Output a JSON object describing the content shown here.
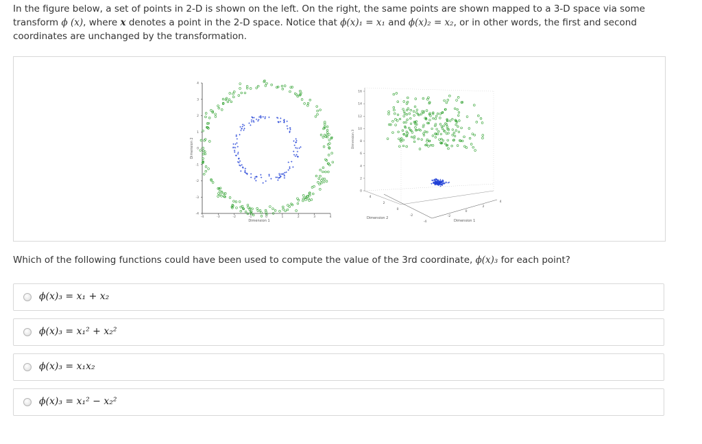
{
  "intro": {
    "line1": "In the figure below, a set of points in 2-D is shown on the left. On the right, the same points are shown mapped to a 3-D space via some",
    "line2_pre": "transform ",
    "phi_x": "ϕ (x)",
    "line2_mid": ", where ",
    "x_bold": "x",
    "line2_mid2": " denotes a point in the 2-D space. Notice that ",
    "eq1": "ϕ(x)₁ = x₁",
    "and": " and ",
    "eq2": "ϕ(x)₂ = x₂",
    "line2_end": ", or in other words, the first and second",
    "line3": "coordinates are unchanged by the transformation."
  },
  "figure": {
    "left_plot": {
      "xlabel": "Dimension 1",
      "ylabel": "Dimension 2",
      "xticks": [
        "-4",
        "-3",
        "-2",
        "-1",
        "0",
        "1",
        "2",
        "3",
        "4"
      ],
      "yticks": [
        "4",
        "3",
        "2",
        "1",
        "0",
        "-1",
        "-2",
        "-3",
        "-4"
      ]
    },
    "right_plot": {
      "zticks": [
        "16",
        "14",
        "12",
        "10",
        "8",
        "6",
        "4",
        "2",
        "0"
      ],
      "dim2_label": "Dimension 2",
      "dim1_label": "Dimension 1",
      "zlabel": "Dimension 3",
      "dim2_ticks": [
        "4",
        "2",
        "0",
        "-2",
        "-4"
      ],
      "dim1_ticks": [
        "-2",
        "0",
        "2",
        "4"
      ]
    },
    "colors": {
      "outer": "#2ea02e",
      "inner": "#1f3fd6"
    }
  },
  "question": {
    "text_pre": "Which of the following functions could have been used to compute the value of the 3rd coordinate, ",
    "phi3": "ϕ(x)₃",
    "text_post": " for each point?"
  },
  "options": [
    {
      "label": "ϕ(x)₃ = x₁ + x₂"
    },
    {
      "label": "ϕ(x)₃ = x₁² + x₂²"
    },
    {
      "label": "ϕ(x)₃ = x₁x₂"
    },
    {
      "label": "ϕ(x)₃ = x₁² − x₂²"
    }
  ]
}
